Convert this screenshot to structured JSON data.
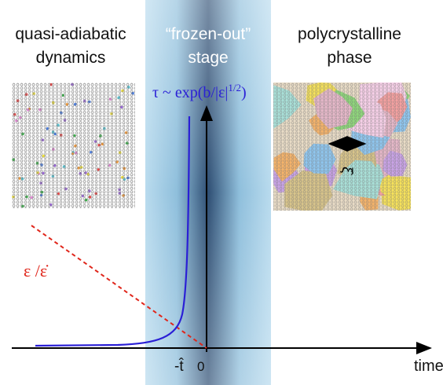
{
  "labels": {
    "left": [
      "quasi-adiabatic",
      "dynamics"
    ],
    "middle": [
      "“frozen-out”",
      "stage"
    ],
    "right": [
      "polycrystalline",
      "phase"
    ]
  },
  "formula": {
    "main": "τ ~ exp(b/|ε|",
    "exponent": "1/2",
    "close": ")"
  },
  "ratio_label": "ε /ε̇",
  "length_label": "ξ̂",
  "axis": {
    "t_hat": "-t̂",
    "zero": "0",
    "time": "time"
  }
}
